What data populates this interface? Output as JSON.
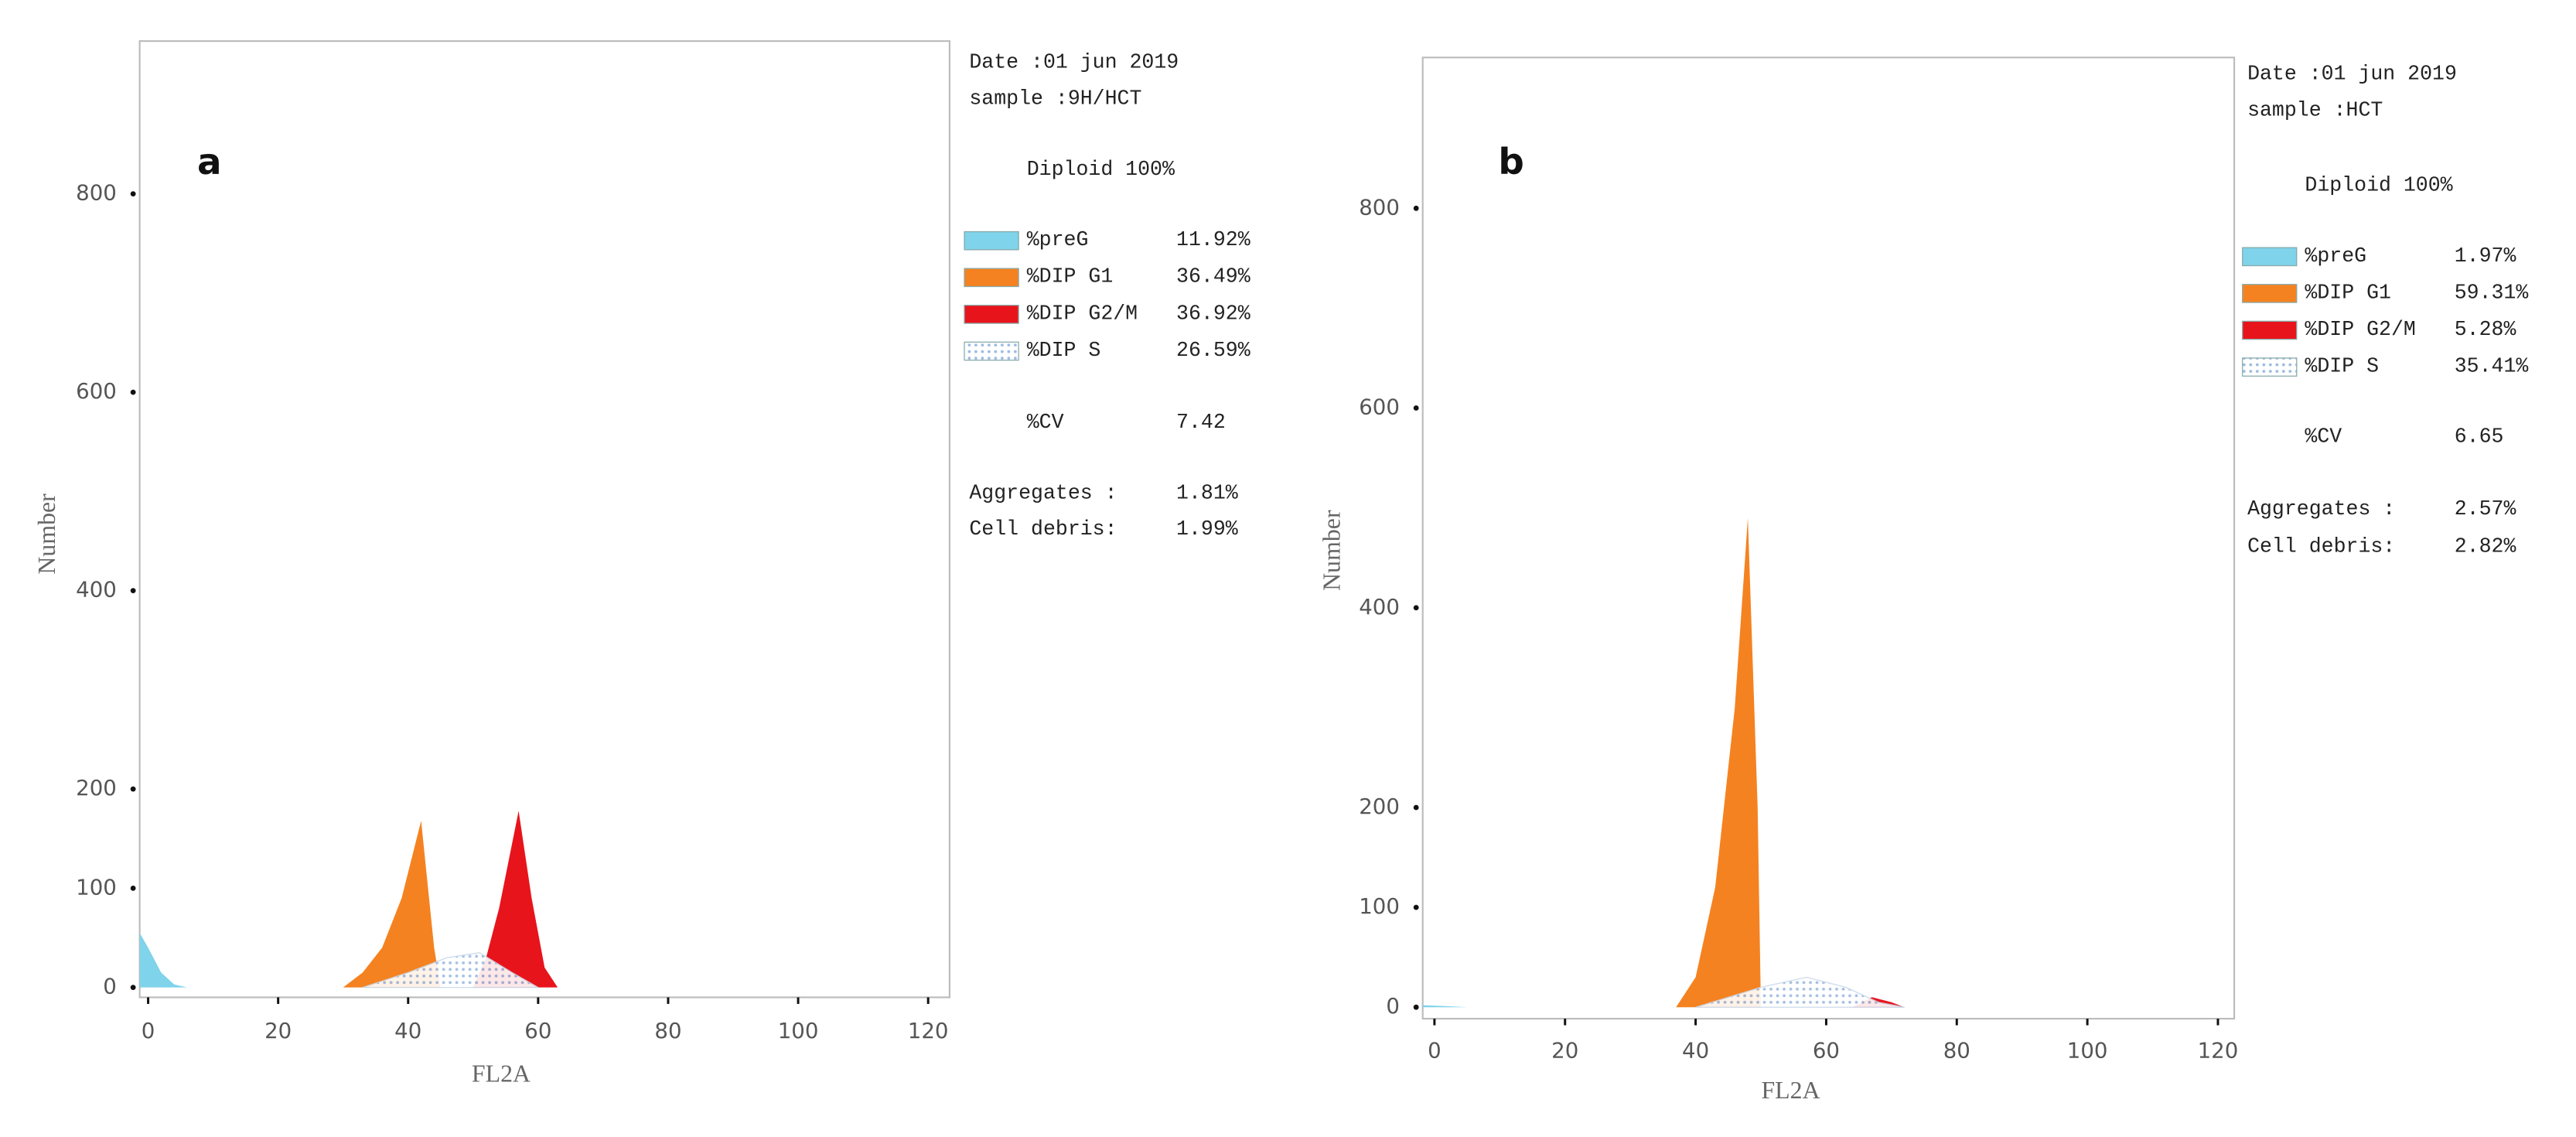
{
  "chart_data": [
    {
      "type": "area",
      "panel_label": "a",
      "xlabel": "FL2A",
      "ylabel": "Number",
      "info": {
        "date": "Date :01 jun 2019",
        "sample": "sample :9H/HCT",
        "diploid": "Diploid 100%",
        "cv_name": "%CV",
        "cv": 7.42,
        "aggregates_name": "Aggregates :",
        "aggregates": "1.81%",
        "debris_name": "Cell debris:",
        "debris": "1.99%"
      },
      "xlim": [
        -1.3,
        123.3
      ],
      "ylim": [
        -10,
        954
      ],
      "xticks": [
        0,
        20,
        40,
        60,
        80,
        100,
        120
      ],
      "yticks": [
        0,
        100,
        200,
        400,
        600,
        800
      ],
      "series": [
        {
          "name": "%preG",
          "share_label": "11.92%",
          "color": "#7fd3ea",
          "x": [
            -1.3,
            0,
            2,
            4,
            6
          ],
          "values": [
            55,
            40,
            15,
            3,
            0
          ]
        },
        {
          "name": "%DIP G1",
          "share_label": "36.49%",
          "color": "#f58220",
          "x": [
            30,
            33,
            36,
            39,
            42,
            44,
            45
          ],
          "values": [
            0,
            15,
            40,
            90,
            168,
            40,
            0
          ]
        },
        {
          "name": "%DIP G2/M",
          "share_label": "36.92%",
          "color": "#e8141c",
          "x": [
            50,
            52,
            54,
            57,
            59,
            61,
            63
          ],
          "values": [
            0,
            30,
            80,
            178,
            90,
            20,
            0
          ]
        },
        {
          "name": "%DIP S",
          "share_label": "26.59%",
          "color": "#9dbbe0",
          "pattern": "dots",
          "x": [
            33,
            40,
            46,
            51,
            56,
            60
          ],
          "values": [
            0,
            15,
            30,
            35,
            15,
            0
          ]
        }
      ]
    },
    {
      "type": "area",
      "panel_label": "b",
      "xlabel": "FL2A",
      "ylabel": "Number",
      "info": {
        "date": "Date :01 jun 2019",
        "sample": "sample :HCT",
        "diploid": "Diploid 100%",
        "cv_name": "%CV",
        "cv": 6.65,
        "aggregates_name": "Aggregates :",
        "aggregates": "2.57%",
        "debris_name": "Cell debris:",
        "debris": "2.82%"
      },
      "xlim": [
        -1.8,
        122.5
      ],
      "ylim": [
        -11.5,
        951
      ],
      "xticks": [
        0,
        20,
        40,
        60,
        80,
        100,
        120
      ],
      "yticks": [
        0,
        100,
        200,
        400,
        600,
        800
      ],
      "series": [
        {
          "name": "%preG",
          "share_label": "1.97%",
          "color": "#7fd3ea",
          "x": [
            -1.8,
            2,
            5
          ],
          "values": [
            2,
            1,
            0
          ]
        },
        {
          "name": "%DIP G1",
          "share_label": "59.31%",
          "color": "#f58220",
          "x": [
            37,
            40,
            43,
            46,
            48,
            49.5,
            50
          ],
          "values": [
            0,
            30,
            120,
            300,
            490,
            200,
            0
          ]
        },
        {
          "name": "%DIP G2/M",
          "share_label": "5.28%",
          "color": "#e8141c",
          "x": [
            64,
            67,
            70,
            72
          ],
          "values": [
            0,
            10,
            5,
            0
          ]
        },
        {
          "name": "%DIP S",
          "share_label": "35.41%",
          "color": "#9dbbe0",
          "pattern": "dots",
          "x": [
            40,
            50,
            57,
            63,
            68,
            72
          ],
          "values": [
            0,
            20,
            30,
            20,
            5,
            0
          ]
        }
      ]
    }
  ]
}
